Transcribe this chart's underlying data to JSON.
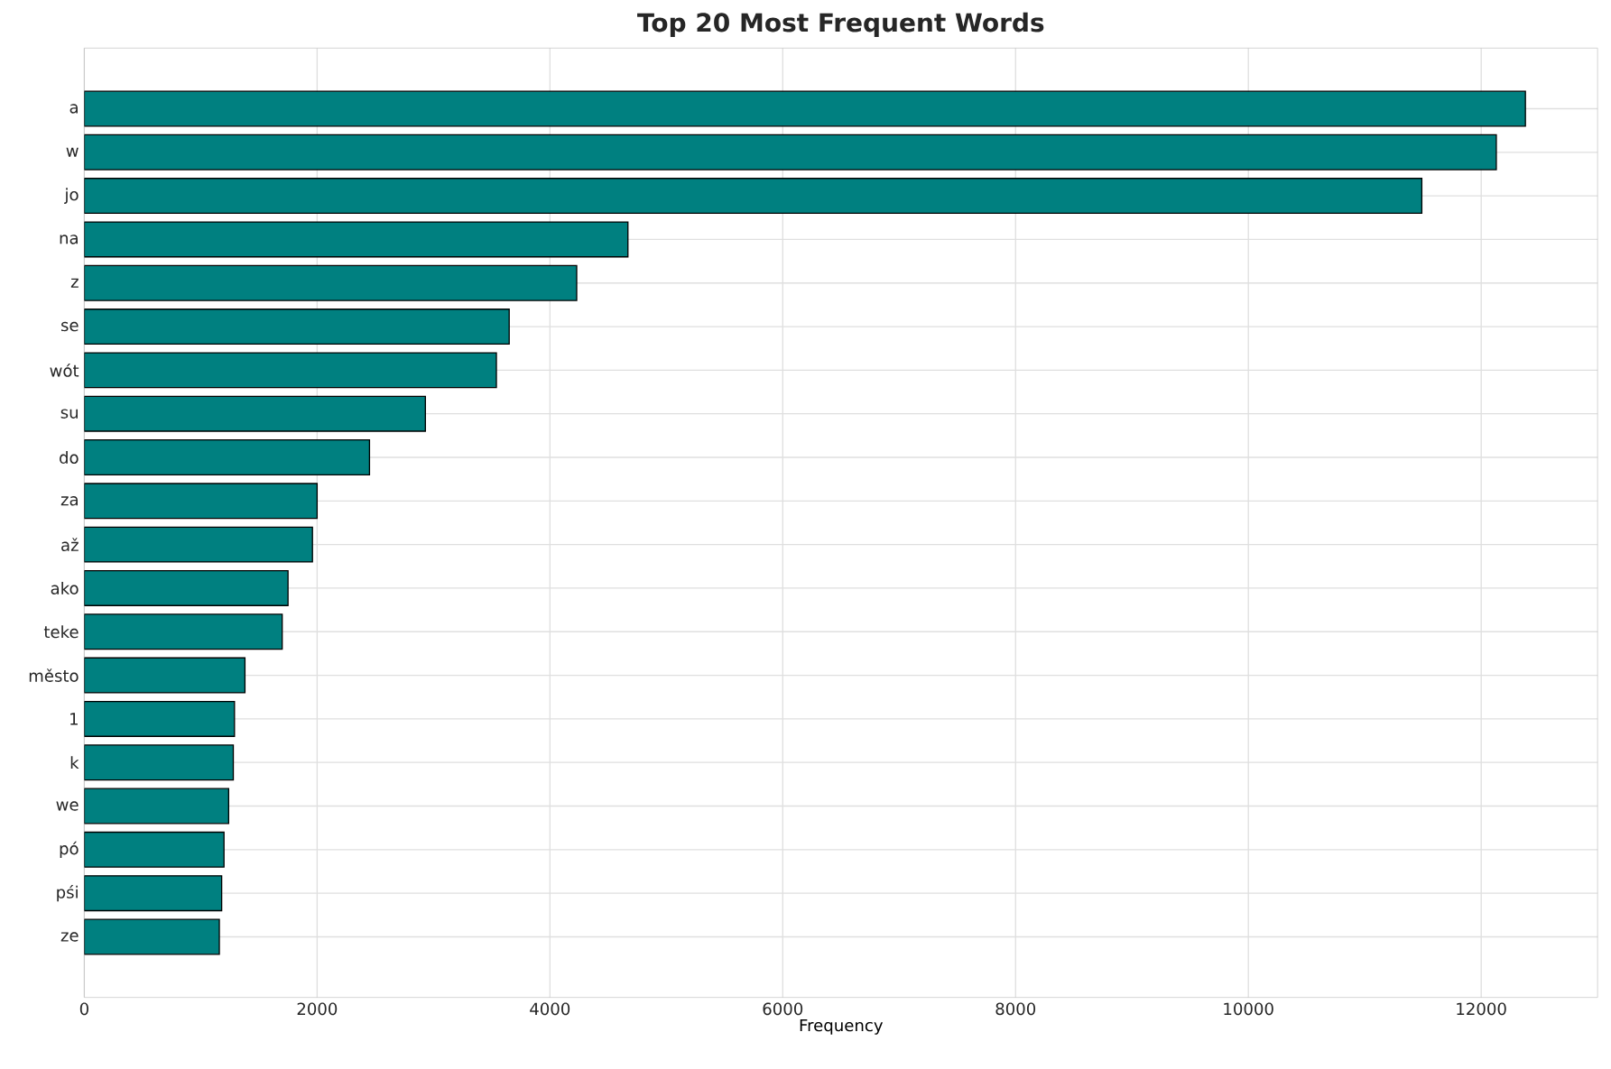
{
  "chart_data": {
    "type": "bar",
    "orientation": "horizontal",
    "title": "Top 20 Most Frequent Words",
    "xlabel": "Frequency",
    "categories": [
      "a",
      "w",
      "jo",
      "na",
      "z",
      "se",
      "wót",
      "su",
      "do",
      "za",
      "až",
      "ako",
      "teke",
      "město",
      "1",
      "k",
      "we",
      "pó",
      "pśi",
      "ze"
    ],
    "values": [
      12380,
      12130,
      11490,
      4670,
      4230,
      3650,
      3540,
      2930,
      2450,
      2000,
      1960,
      1750,
      1700,
      1380,
      1290,
      1280,
      1240,
      1200,
      1180,
      1160
    ],
    "color": "#008080",
    "xlim": [
      0,
      13000
    ],
    "xticks": [
      0,
      2000,
      4000,
      6000,
      8000,
      10000,
      12000
    ],
    "grid": true
  }
}
